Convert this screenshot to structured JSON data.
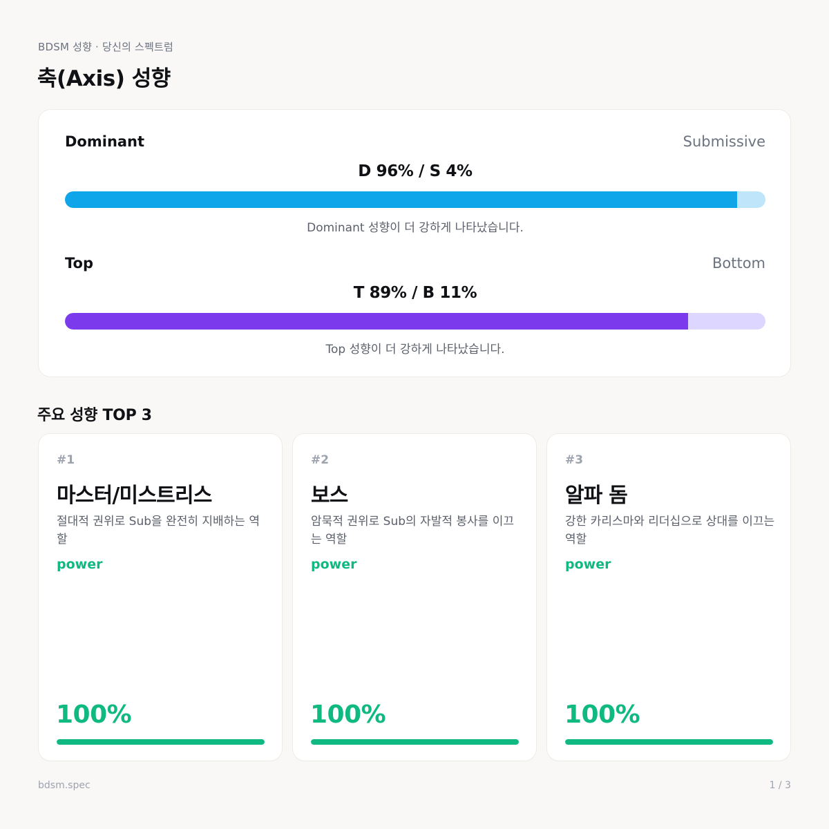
{
  "header": {
    "kicker": "BDSM 성향 · 당신의 스펙트럼",
    "title": "축(Axis) 성향"
  },
  "axes": [
    {
      "left_label": "Dominant",
      "right_label": "Submissive",
      "score_text": "D 96% / S 4%",
      "fill_percent": 96,
      "color": "#0ea5e9",
      "track_color": "#bfe5fb",
      "note": "Dominant 성향이 더 강하게 나타났습니다."
    },
    {
      "left_label": "Top",
      "right_label": "Bottom",
      "score_text": "T 89% / B 11%",
      "fill_percent": 89,
      "color": "#7c3aed",
      "track_color": "#ddd6fe",
      "note": "Top 성향이 더 강하게 나타났습니다."
    }
  ],
  "top3": {
    "section_title": "주요 성향 TOP 3",
    "accent_color": "#10b981",
    "cards": [
      {
        "rank": "#1",
        "title": "마스터/미스트리스",
        "description": "절대적 권위로 Sub을 완전히 지배하는 역할",
        "tag": "power",
        "percent_text": "100%",
        "fill_percent": 100
      },
      {
        "rank": "#2",
        "title": "보스",
        "description": "암묵적 권위로 Sub의 자발적 봉사를 이끄는 역할",
        "tag": "power",
        "percent_text": "100%",
        "fill_percent": 100
      },
      {
        "rank": "#3",
        "title": "알파 돔",
        "description": "강한 카리스마와 리더십으로 상대를 이끄는 역할",
        "tag": "power",
        "percent_text": "100%",
        "fill_percent": 100
      }
    ]
  },
  "footer": {
    "brand": "bdsm.spec",
    "page_indicator": "1 / 3"
  }
}
